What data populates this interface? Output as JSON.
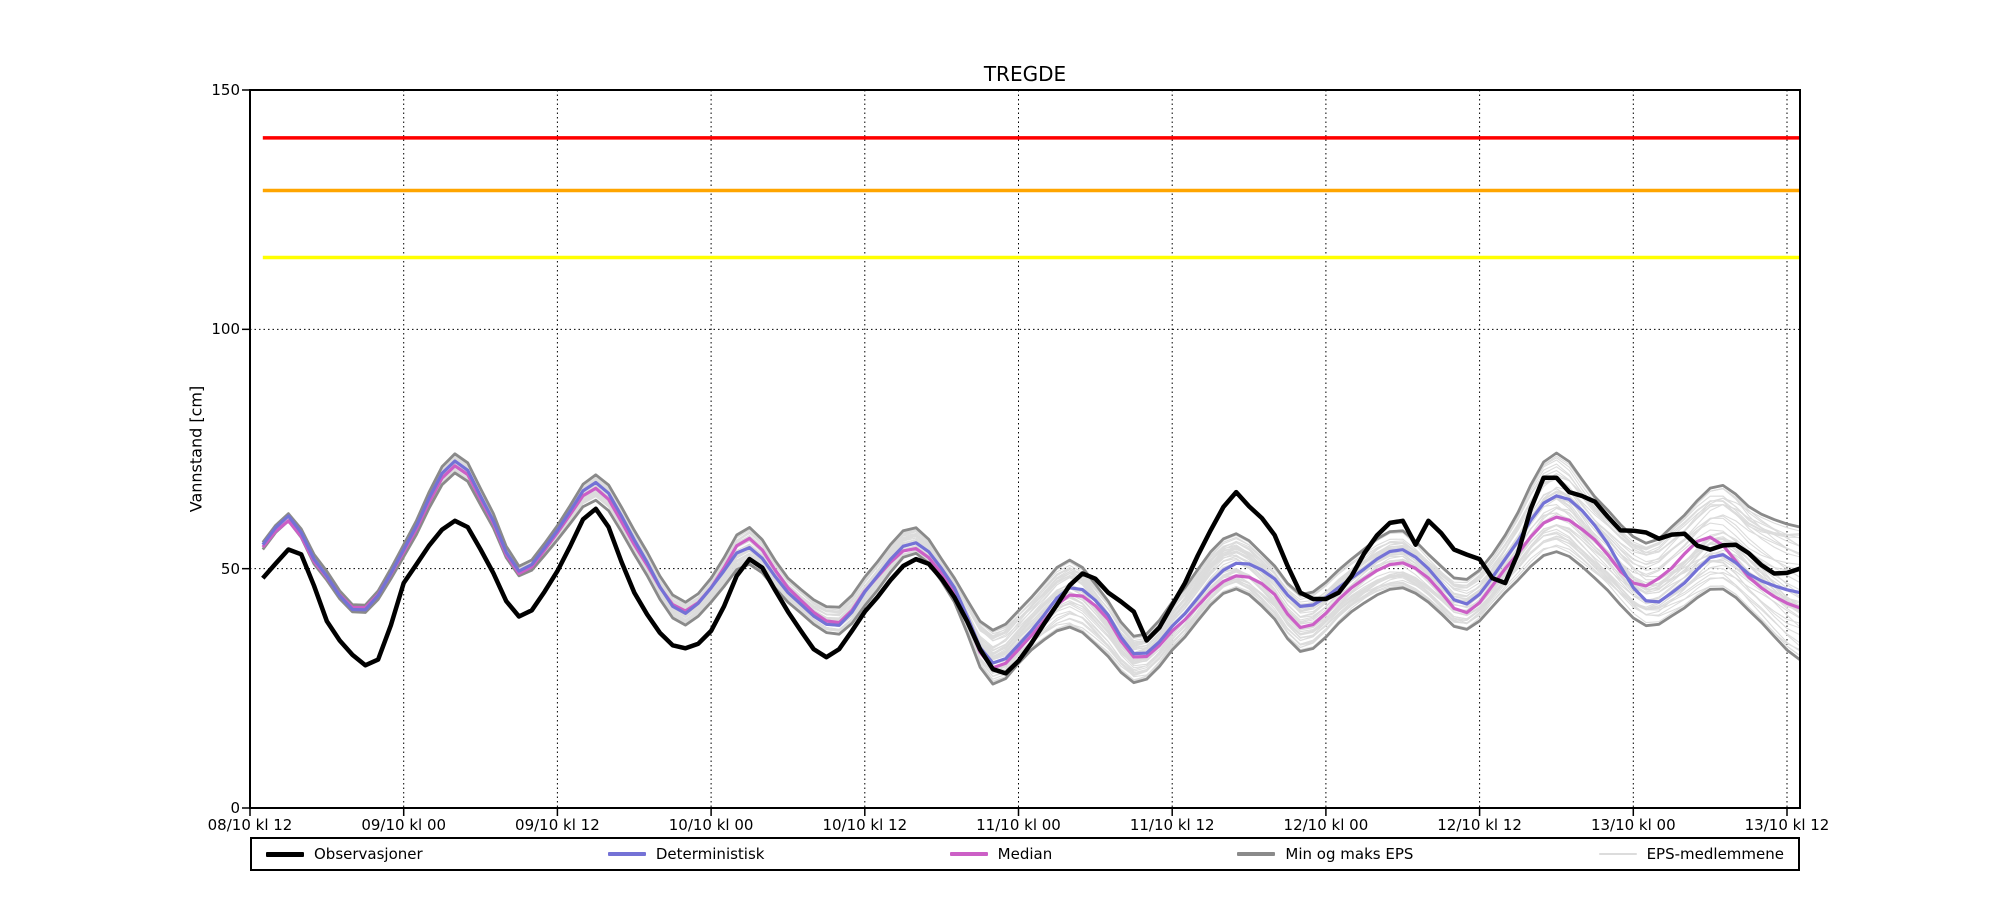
{
  "title": "TREGDE",
  "ylabel": "Vannstand [cm]",
  "legend": {
    "items": [
      {
        "label": "Observasjoner",
        "color": "#000000",
        "thickness": 5
      },
      {
        "label": "Deterministisk",
        "color": "#7472d6",
        "thickness": 4
      },
      {
        "label": "Median",
        "color": "#cc5fc6",
        "thickness": 4
      },
      {
        "label": "Min og maks EPS",
        "color": "#8a8a8a",
        "thickness": 4
      },
      {
        "label": "EPS-medlemmene",
        "color": "#dcdcdc",
        "thickness": 2
      }
    ]
  },
  "chart_data": {
    "type": "line",
    "title": "TREGDE",
    "xlabel": "",
    "ylabel": "Vannstand [cm]",
    "ylim": [
      0,
      150
    ],
    "yticks": [
      0,
      50,
      100,
      150
    ],
    "grid": {
      "vertical_at_xticks": true,
      "horizontal_at": [
        50,
        100
      ],
      "style": "dotted"
    },
    "legend_position": "bottom",
    "x_unit": "hours since 08/10 kl 12",
    "xlim": [
      0,
      121
    ],
    "xticks": {
      "hours": [
        0,
        12,
        24,
        36,
        48,
        60,
        72,
        84,
        96,
        108,
        120
      ],
      "labels": [
        "08/10 kl 12",
        "09/10 kl 00",
        "09/10 kl 12",
        "10/10 kl 00",
        "10/10 kl 12",
        "11/10 kl 00",
        "11/10 kl 12",
        "12/10 kl 00",
        "12/10 kl 12",
        "13/10 kl 00",
        "13/10 kl 12"
      ]
    },
    "warning_lines": [
      {
        "name": "red-warning-level",
        "value": 140,
        "color": "#ff0000"
      },
      {
        "name": "orange-warning-level",
        "value": 129,
        "color": "#ffa500"
      },
      {
        "name": "yellow-warning-level",
        "value": 115,
        "color": "#ffff00"
      }
    ],
    "series": [
      {
        "name": "Observasjoner",
        "color": "#000000",
        "width": 4.5,
        "points": [
          [
            1,
            48
          ],
          [
            3,
            54
          ],
          [
            4,
            53
          ],
          [
            6,
            39
          ],
          [
            8.5,
            31
          ],
          [
            10,
            31
          ],
          [
            12,
            47
          ],
          [
            16,
            60
          ],
          [
            18,
            54
          ],
          [
            21,
            40
          ],
          [
            24,
            49.5
          ],
          [
            27,
            62.5
          ],
          [
            30,
            45
          ],
          [
            33,
            34
          ],
          [
            34.5,
            34
          ],
          [
            36,
            37
          ],
          [
            39,
            52
          ],
          [
            42,
            41
          ],
          [
            45,
            31.5
          ],
          [
            48,
            41
          ],
          [
            52,
            52
          ],
          [
            55,
            44
          ],
          [
            58,
            29
          ],
          [
            59.5,
            29.5
          ],
          [
            62,
            38.5
          ],
          [
            65,
            49
          ],
          [
            67,
            45
          ],
          [
            69,
            41
          ],
          [
            70,
            35
          ],
          [
            73,
            47
          ],
          [
            75,
            58
          ],
          [
            77,
            66
          ],
          [
            78,
            63
          ],
          [
            80,
            57
          ],
          [
            82,
            45
          ],
          [
            85,
            45
          ],
          [
            88,
            57
          ],
          [
            90,
            60
          ],
          [
            91,
            55
          ],
          [
            92,
            60
          ],
          [
            94,
            54
          ],
          [
            96,
            52
          ],
          [
            98,
            47
          ],
          [
            101,
            69
          ],
          [
            103,
            66
          ],
          [
            105,
            64
          ],
          [
            107,
            58
          ],
          [
            108.5,
            58
          ],
          [
            110.5,
            56
          ],
          [
            111.5,
            58
          ],
          [
            113.5,
            54
          ],
          [
            116,
            55
          ],
          [
            119,
            49
          ],
          [
            121,
            50
          ]
        ]
      },
      {
        "name": "Deterministisk",
        "color": "#7472d6",
        "width": 3.2,
        "points": [
          [
            1,
            55
          ],
          [
            3,
            61
          ],
          [
            5,
            52
          ],
          [
            8.6,
            41
          ],
          [
            12,
            54
          ],
          [
            16,
            72.5
          ],
          [
            19,
            60
          ],
          [
            21,
            49.5
          ],
          [
            24,
            58
          ],
          [
            27,
            68
          ],
          [
            30,
            56
          ],
          [
            33.5,
            41
          ],
          [
            36,
            46
          ],
          [
            38.8,
            54.5
          ],
          [
            42,
            45
          ],
          [
            45.8,
            38
          ],
          [
            48.5,
            47
          ],
          [
            51.8,
            55.5
          ],
          [
            55,
            46
          ],
          [
            57.8,
            30.5
          ],
          [
            61,
            37
          ],
          [
            64,
            46
          ],
          [
            66.5,
            42
          ],
          [
            69.2,
            32
          ],
          [
            72,
            38
          ],
          [
            76.5,
            50.5
          ],
          [
            79.5,
            49
          ],
          [
            82.2,
            42
          ],
          [
            86,
            48
          ],
          [
            89.6,
            54
          ],
          [
            92,
            50
          ],
          [
            94.8,
            42.5
          ],
          [
            98,
            52
          ],
          [
            101.7,
            65
          ],
          [
            105,
            59
          ],
          [
            108.9,
            43.5
          ],
          [
            111.5,
            46
          ],
          [
            114.6,
            53
          ],
          [
            117.5,
            48
          ],
          [
            121,
            45
          ]
        ]
      },
      {
        "name": "Median",
        "color": "#cc5fc6",
        "width": 3.2,
        "points": [
          [
            1,
            54.5
          ],
          [
            3,
            60
          ],
          [
            5,
            51.5
          ],
          [
            8.6,
            41.5
          ],
          [
            12,
            53.5
          ],
          [
            16,
            71.5
          ],
          [
            19,
            59.5
          ],
          [
            21,
            49
          ],
          [
            24,
            57.5
          ],
          [
            27,
            66.8
          ],
          [
            30,
            55
          ],
          [
            33.5,
            41.5
          ],
          [
            36,
            46
          ],
          [
            38.8,
            56.4
          ],
          [
            42,
            46
          ],
          [
            45.8,
            38.6
          ],
          [
            48.5,
            47
          ],
          [
            51.8,
            54.3
          ],
          [
            55,
            45
          ],
          [
            57.8,
            29.5
          ],
          [
            61,
            36
          ],
          [
            64,
            44.5
          ],
          [
            66.5,
            41
          ],
          [
            69.2,
            31.3
          ],
          [
            72,
            37
          ],
          [
            76.5,
            48
          ],
          [
            79.5,
            46
          ],
          [
            82.2,
            37.6
          ],
          [
            86,
            46
          ],
          [
            89.6,
            51.2
          ],
          [
            92,
            48
          ],
          [
            94.8,
            40.7
          ],
          [
            98,
            50
          ],
          [
            101.7,
            60.6
          ],
          [
            105,
            56
          ],
          [
            108,
            47
          ],
          [
            110,
            48
          ],
          [
            113.9,
            56.6
          ],
          [
            117.5,
            47
          ],
          [
            121,
            41.8
          ]
        ]
      },
      {
        "name": "Min EPS",
        "color": "#8a8a8a",
        "width": 2.8,
        "points": [
          [
            1,
            54
          ],
          [
            3,
            60
          ],
          [
            5,
            51
          ],
          [
            8.6,
            40.5
          ],
          [
            12,
            52.5
          ],
          [
            16,
            70
          ],
          [
            19,
            58.5
          ],
          [
            21,
            48.5
          ],
          [
            24,
            56
          ],
          [
            27,
            64.3
          ],
          [
            30,
            53
          ],
          [
            33.5,
            38.6
          ],
          [
            36,
            43
          ],
          [
            38.8,
            51
          ],
          [
            42,
            43
          ],
          [
            45.8,
            36.2
          ],
          [
            48.5,
            44
          ],
          [
            51.8,
            53.3
          ],
          [
            55,
            43
          ],
          [
            57.8,
            26.1
          ],
          [
            61,
            33
          ],
          [
            64,
            37.8
          ],
          [
            66.5,
            33
          ],
          [
            69.2,
            26.1
          ],
          [
            72,
            33
          ],
          [
            76.5,
            45.5
          ],
          [
            79.5,
            41
          ],
          [
            82.2,
            32.6
          ],
          [
            86,
            41
          ],
          [
            89.6,
            46
          ],
          [
            92,
            43
          ],
          [
            94.8,
            37.2
          ],
          [
            98,
            45
          ],
          [
            101.7,
            53.5
          ],
          [
            105,
            48
          ],
          [
            108.9,
            38.2
          ],
          [
            111.5,
            41
          ],
          [
            114.6,
            46
          ],
          [
            117.5,
            40
          ],
          [
            121,
            31
          ]
        ]
      },
      {
        "name": "Maks EPS",
        "color": "#8a8a8a",
        "width": 2.8,
        "points": [
          [
            1,
            55.5
          ],
          [
            3,
            61.5
          ],
          [
            5,
            53
          ],
          [
            8.6,
            42
          ],
          [
            12,
            55
          ],
          [
            16,
            74
          ],
          [
            19,
            61.5
          ],
          [
            21,
            50.5
          ],
          [
            24,
            59
          ],
          [
            27,
            69.6
          ],
          [
            30,
            58
          ],
          [
            33.5,
            43.4
          ],
          [
            36,
            48
          ],
          [
            38.8,
            58.7
          ],
          [
            42,
            48
          ],
          [
            45.8,
            41.8
          ],
          [
            48.5,
            50
          ],
          [
            51.8,
            58.7
          ],
          [
            55,
            48
          ],
          [
            57.8,
            37.2
          ],
          [
            61,
            44
          ],
          [
            64,
            51.8
          ],
          [
            66.5,
            45
          ],
          [
            69.2,
            35.7
          ],
          [
            72,
            43
          ],
          [
            76.5,
            57
          ],
          [
            79.5,
            52
          ],
          [
            82.2,
            44.5
          ],
          [
            86,
            52
          ],
          [
            89.6,
            58.1
          ],
          [
            92,
            53
          ],
          [
            94.8,
            47.6
          ],
          [
            98,
            57
          ],
          [
            101.7,
            74
          ],
          [
            105,
            65
          ],
          [
            108.9,
            55.4
          ],
          [
            111.5,
            60
          ],
          [
            114.6,
            67.5
          ],
          [
            117.5,
            62
          ],
          [
            121,
            58.7
          ]
        ]
      }
    ],
    "eps_members": {
      "label": "EPS-medlemmene",
      "count": 48,
      "color": "#dcdcdc",
      "width": 1.1,
      "note": "individual ensemble member traces fill the band between Min EPS and Maks EPS"
    }
  }
}
